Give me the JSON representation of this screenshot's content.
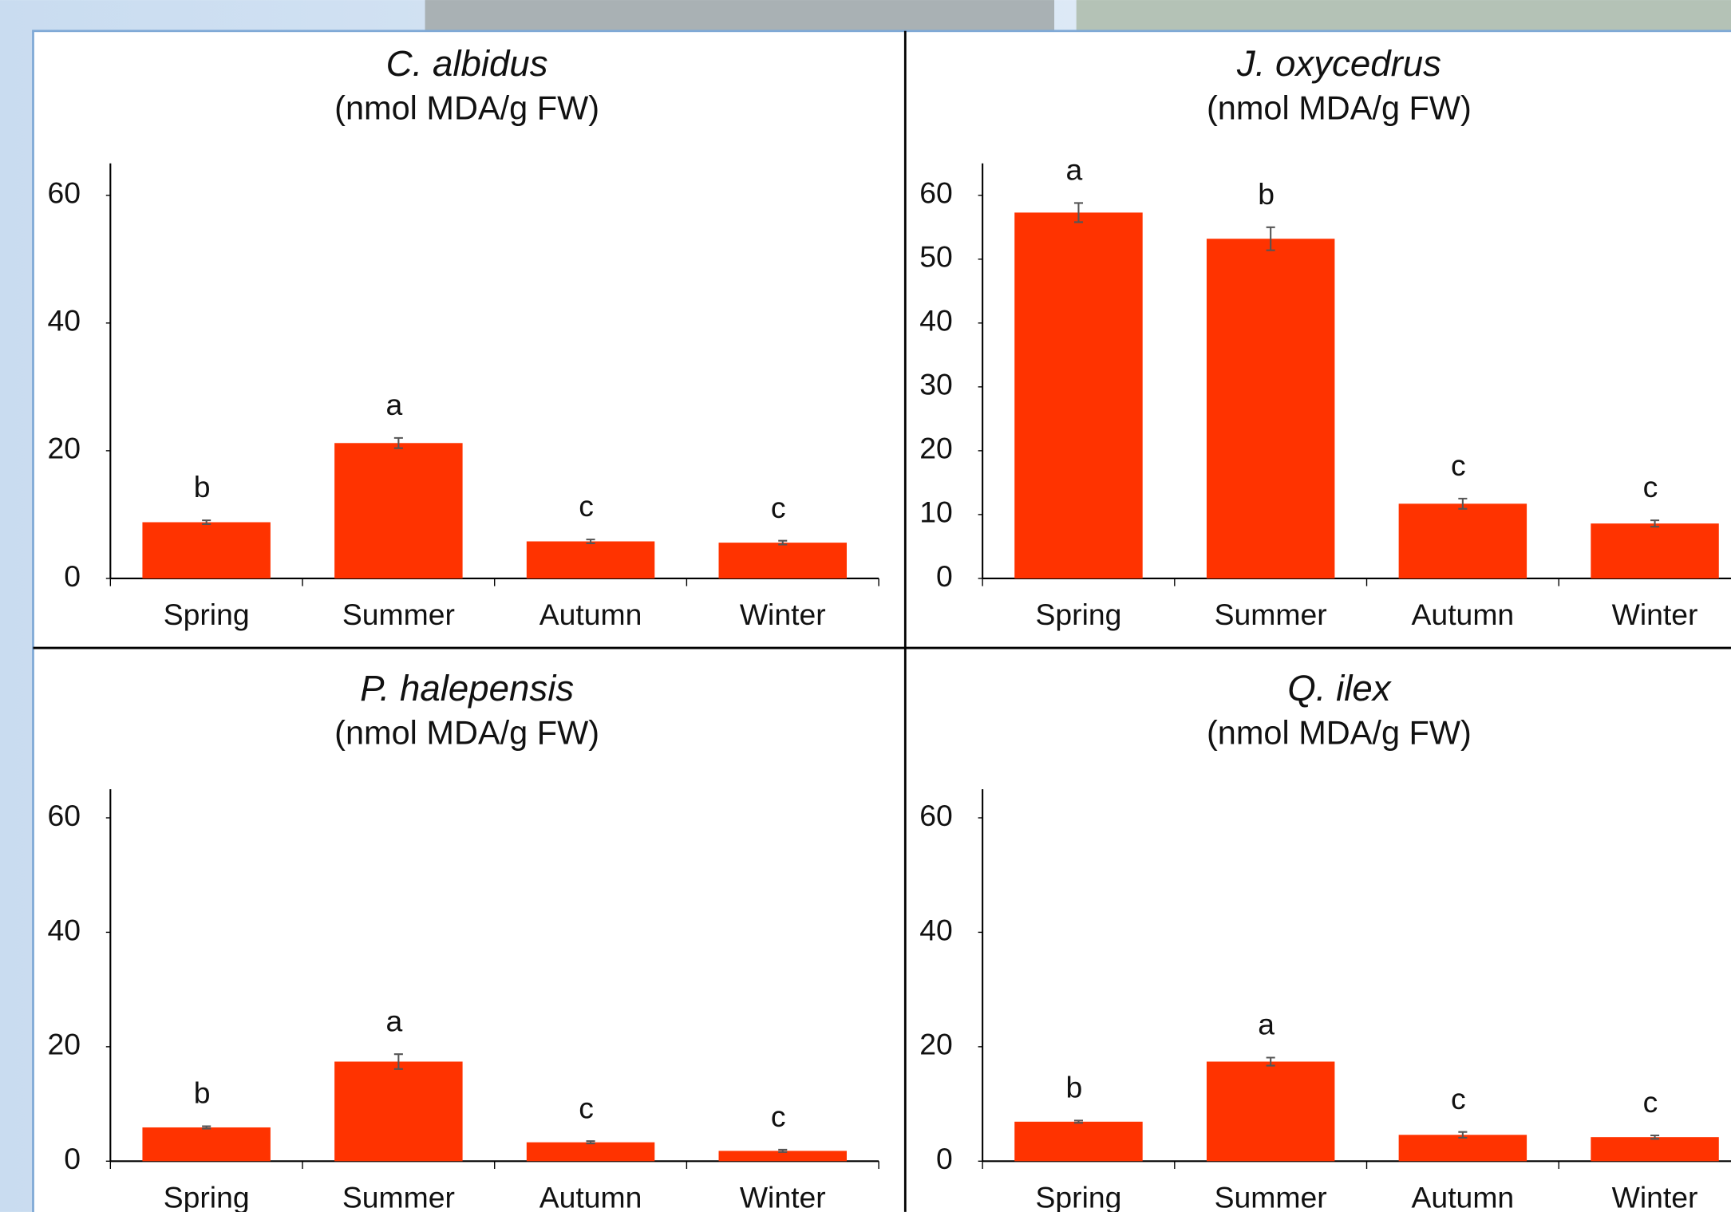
{
  "chart_data": [
    {
      "type": "bar",
      "title": "C. albidus",
      "subtitle": "(nmol MDA/g FW)",
      "categories": [
        "Spring",
        "Summer",
        "Autumn",
        "Winter"
      ],
      "values": [
        8.8,
        21.2,
        5.8,
        5.6
      ],
      "errors": [
        0.3,
        0.8,
        0.3,
        0.3
      ],
      "annotations": [
        "b",
        "a",
        "c",
        "c"
      ],
      "color": "#ff3300",
      "ylim": [
        0,
        65
      ],
      "yticks": [
        0,
        20,
        40,
        60
      ]
    },
    {
      "type": "bar",
      "title": "J. oxycedrus",
      "subtitle": "(nmol MDA/g FW)",
      "categories": [
        "Spring",
        "Summer",
        "Autumn",
        "Winter"
      ],
      "values": [
        57.3,
        53.2,
        11.7,
        8.6
      ],
      "errors": [
        1.5,
        1.8,
        0.8,
        0.5
      ],
      "annotations": [
        "a",
        "b",
        "c",
        "c"
      ],
      "color": "#ff3300",
      "ylim": [
        0,
        65
      ],
      "yticks": [
        0,
        10,
        20,
        30,
        40,
        50,
        60
      ]
    },
    {
      "type": "bar",
      "title": "P. halepensis",
      "subtitle": "(nmol MDA/g FW)",
      "categories": [
        "Spring",
        "Summer",
        "Autumn",
        "Winter"
      ],
      "values": [
        5.9,
        17.4,
        3.3,
        1.8
      ],
      "errors": [
        0.2,
        1.3,
        0.2,
        0.2
      ],
      "annotations": [
        "b",
        "a",
        "c",
        "c"
      ],
      "color": "#ff3300",
      "ylim": [
        0,
        65
      ],
      "yticks": [
        0,
        20,
        40,
        60
      ]
    },
    {
      "type": "bar",
      "title": "Q. ilex",
      "subtitle": "(nmol MDA/g FW)",
      "categories": [
        "Spring",
        "Summer",
        "Autumn",
        "Winter"
      ],
      "values": [
        6.9,
        17.4,
        4.6,
        4.2
      ],
      "errors": [
        0.2,
        0.7,
        0.5,
        0.3
      ],
      "annotations": [
        "b",
        "a",
        "c",
        "c"
      ],
      "color": "#ff3300",
      "ylim": [
        0,
        65
      ],
      "yticks": [
        0,
        20,
        40,
        60
      ]
    }
  ]
}
